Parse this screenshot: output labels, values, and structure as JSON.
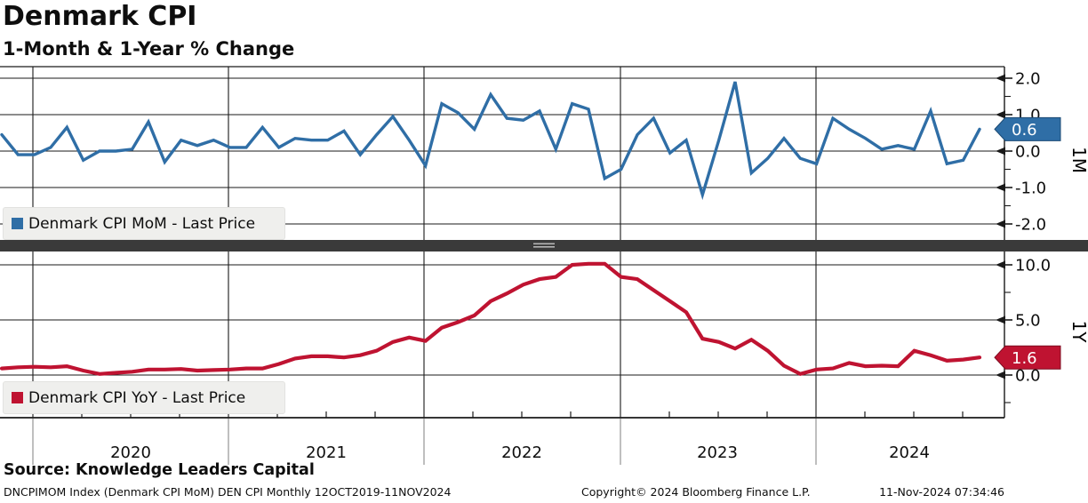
{
  "header": {
    "title": "Denmark CPI",
    "subtitle": "1-Month & 1-Year % Change"
  },
  "colors": {
    "mom_blue": "#2f6ea6",
    "mom_blue_dark": "#1b4a74",
    "yoy_red": "#bf1331",
    "yoy_red_dark": "#7d0c20",
    "legend_bg": "#efefed",
    "divider": "#3a3a3a",
    "divider_grip": "#b5b5b5",
    "grid": "#1a1a1a",
    "year_separator": "#8a8a8a",
    "badge_text": "#ffffff"
  },
  "panels": {
    "top": {
      "legend": "Denmark CPI MoM - Last Price",
      "axis_label": "1M",
      "last_price": "0.6",
      "yticks": [
        "2.0",
        "1.0",
        "0.0",
        "-1.0",
        "-2.0"
      ]
    },
    "bottom": {
      "legend": "Denmark CPI YoY - Last Price",
      "axis_label": "1Y",
      "last_price": "1.6",
      "yticks": [
        "10.0",
        "5.0",
        "0.0"
      ]
    }
  },
  "x_axis": {
    "year_labels": [
      "2020",
      "2021",
      "2022",
      "2023",
      "2024"
    ]
  },
  "footer": {
    "source": "Source: Knowledge Leaders Capital",
    "security_note": "DNCPIMOM Index (Denmark CPI MoM) DEN CPI  Monthly 12OCT2019-11NOV2024",
    "copyright": "Copyright© 2024 Bloomberg Finance L.P.",
    "datetime": "11-Nov-2024 07:34:46"
  },
  "chart_data": [
    {
      "type": "line",
      "name": "Denmark CPI MoM - Last Price",
      "panel": "1M",
      "color": "#2f6ea6",
      "x_start": "Oct 2019",
      "x_end": "Oct 2024",
      "frequency": "monthly",
      "ylim": [
        -2.4,
        2.3
      ],
      "ytick_values": [
        2.0,
        1.0,
        0.0,
        -1.0,
        -2.0
      ],
      "ytick_minor_values": [
        1.5,
        0.5,
        -0.5,
        -1.5
      ],
      "last_value": 0.6,
      "values": [
        0.45,
        -0.1,
        -0.1,
        0.1,
        0.65,
        -0.25,
        0.0,
        0.0,
        0.05,
        0.8,
        -0.3,
        0.3,
        0.15,
        0.3,
        0.1,
        0.1,
        0.65,
        0.1,
        0.35,
        0.3,
        0.3,
        0.55,
        -0.1,
        0.45,
        0.95,
        0.3,
        -0.4,
        1.3,
        1.05,
        0.6,
        1.55,
        0.9,
        0.85,
        1.1,
        0.05,
        1.3,
        1.15,
        -0.75,
        -0.5,
        0.45,
        0.9,
        -0.05,
        0.3,
        -1.2,
        0.3,
        1.9,
        -0.6,
        -0.2,
        0.35,
        -0.2,
        -0.35,
        0.9,
        0.6,
        0.35,
        0.05,
        0.15,
        0.05,
        1.1,
        -0.35,
        -0.25,
        0.6
      ]
    },
    {
      "type": "line",
      "name": "Denmark CPI YoY - Last Price",
      "panel": "1Y",
      "color": "#bf1331",
      "x_start": "Oct 2019",
      "x_end": "Oct 2024",
      "frequency": "monthly",
      "ylim": [
        -3.8,
        11.3
      ],
      "ytick_values": [
        10.0,
        5.0,
        0.0
      ],
      "ytick_minor_values": [
        7.5,
        2.5,
        -2.5
      ],
      "last_value": 1.6,
      "values": [
        0.6,
        0.7,
        0.75,
        0.7,
        0.8,
        0.4,
        0.1,
        0.2,
        0.3,
        0.5,
        0.5,
        0.55,
        0.4,
        0.45,
        0.5,
        0.6,
        0.6,
        1.0,
        1.5,
        1.7,
        1.7,
        1.6,
        1.8,
        2.2,
        3.0,
        3.4,
        3.1,
        4.3,
        4.8,
        5.4,
        6.7,
        7.4,
        8.2,
        8.7,
        8.9,
        10.0,
        10.1,
        10.1,
        8.9,
        8.7,
        7.7,
        6.7,
        5.7,
        3.3,
        3.0,
        2.4,
        3.2,
        2.2,
        0.85,
        0.1,
        0.5,
        0.6,
        1.1,
        0.8,
        0.85,
        0.8,
        2.2,
        1.8,
        1.3,
        1.4,
        1.6
      ]
    }
  ]
}
